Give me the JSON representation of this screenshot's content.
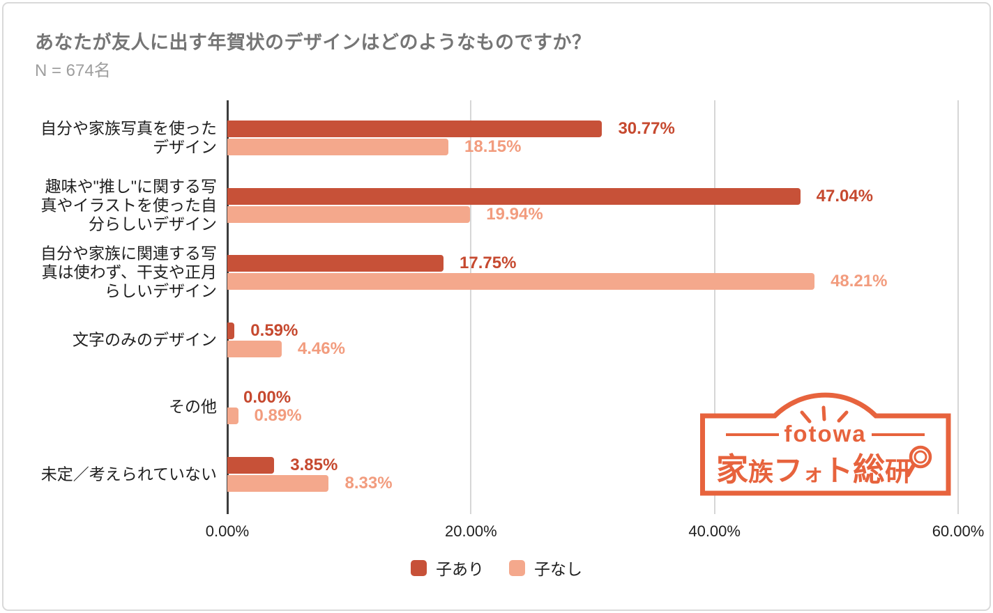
{
  "header": {
    "title": "あなたが友人に出す年賀状のデザインはどのようなものですか？",
    "sample_size": "N = 674名"
  },
  "chart_data": {
    "type": "bar",
    "orientation": "horizontal",
    "title": "あなたが友人に出す年賀状のデザインはどのようなものですか？",
    "sample_size": "N = 674名",
    "categories": [
      "自分や家族写真を使ったデザイン",
      "趣味や\"推し\"に関する写真やイラストを使った自分らしいデザイン",
      "自分や家族に関連する写真は使わず、干支や正月らしいデザイン",
      "文字のみのデザイン",
      "その他",
      "未定／考えられていない"
    ],
    "category_lines": [
      [
        "自分や家族写真を使った",
        "デザイン"
      ],
      [
        "趣味や\"推し\"に関する写",
        "真やイラストを使った自",
        "分らしいデザイン"
      ],
      [
        "自分や家族に関連する写",
        "真は使わず、干支や正月",
        "らしいデザイン"
      ],
      [
        "文字のみのデザイン"
      ],
      [
        "その他"
      ],
      [
        "未定／考えられていない"
      ]
    ],
    "series": [
      {
        "name": "子あり",
        "color": "#c75138",
        "label_color": "#c6492f",
        "values": [
          30.77,
          47.04,
          17.75,
          0.59,
          0.0,
          3.85
        ],
        "labels": [
          "30.77%",
          "47.04%",
          "17.75%",
          "0.59%",
          "0.00%",
          "3.85%"
        ]
      },
      {
        "name": "子なし",
        "color": "#f4a88c",
        "label_color": "#f29c7e",
        "values": [
          18.15,
          19.94,
          48.21,
          4.46,
          0.89,
          8.33
        ],
        "labels": [
          "18.15%",
          "19.94%",
          "48.21%",
          "4.46%",
          "0.89%",
          "8.33%"
        ]
      }
    ],
    "x_ticks": [
      {
        "value": 0,
        "label": "0.00%"
      },
      {
        "value": 20,
        "label": "20.00%"
      },
      {
        "value": 40,
        "label": "40.00%"
      },
      {
        "value": 60,
        "label": "60.00%"
      }
    ],
    "xlim": [
      0,
      60
    ],
    "grid": true,
    "legend_position": "bottom"
  },
  "logo": {
    "brand": "fotowa",
    "name": "家族フォト総研",
    "name_chars": [
      "家",
      "族",
      "フ",
      "ォ",
      "ト",
      "総",
      "研"
    ],
    "color": "#e7633d"
  },
  "colors": {
    "axis": "#3d3d3d",
    "grid": "#d6d6d6",
    "card_border": "#d9d9d9",
    "title": "#757575",
    "subtitle": "#9e9e9e",
    "text": "#1f1f1f"
  }
}
